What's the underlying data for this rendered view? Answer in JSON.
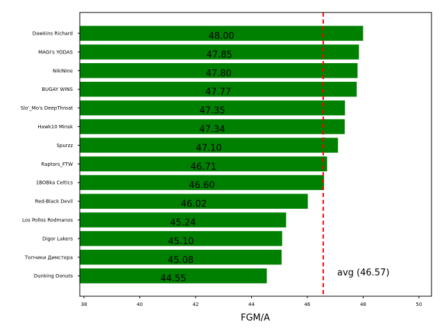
{
  "chart_data": {
    "type": "bar",
    "orientation": "horizontal",
    "categories": [
      "Dawkins Richard",
      "MAGI's YODAS",
      "NikiNine",
      "BUGAY WINS",
      "Slo'_Mo's DeepThroat",
      "Hawk10 Minsk",
      "Spurzz",
      "Raptors_FTW",
      "1BOBka Celtics",
      "Red-Black Devil",
      "Los Pollos Rodmanos",
      "Digor Lakers",
      "Топчики Димстера",
      "Dunking Donuts"
    ],
    "values": [
      48.0,
      47.85,
      47.8,
      47.77,
      47.35,
      47.34,
      47.1,
      46.71,
      46.6,
      46.02,
      45.24,
      45.1,
      45.08,
      44.55
    ],
    "value_labels": [
      "48.00",
      "47.85",
      "47.80",
      "47.77",
      "47.35",
      "47.34",
      "47.10",
      "46.71",
      "46.60",
      "46.02",
      "45.24",
      "45.10",
      "45.08",
      "44.55"
    ],
    "xlabel": "FGM/A",
    "ylabel": "",
    "title": "",
    "xlim": [
      37.85,
      50.45
    ],
    "xticks": [
      "38",
      "40",
      "42",
      "44",
      "46",
      "48",
      "50"
    ],
    "bar_color": "#008000",
    "average": {
      "value": 46.57,
      "label": "avg (46.57)",
      "color": "#ff0000",
      "style": "dashed"
    },
    "grid": false
  }
}
